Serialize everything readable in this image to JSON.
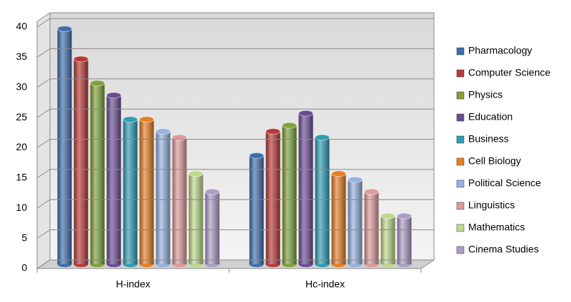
{
  "chart_data": {
    "type": "bar",
    "categories": [
      "H-index",
      "Hc-index"
    ],
    "series": [
      {
        "name": "Pharmacology",
        "color": "#3f6eaf",
        "values": [
          39,
          18
        ]
      },
      {
        "name": "Computer Science",
        "color": "#b83a37",
        "values": [
          34,
          22
        ]
      },
      {
        "name": "Physics",
        "color": "#7ea23a",
        "values": [
          30,
          23
        ]
      },
      {
        "name": "Education",
        "color": "#6b4c94",
        "values": [
          28,
          25
        ]
      },
      {
        "name": "Business",
        "color": "#2e9db5",
        "values": [
          24,
          21
        ]
      },
      {
        "name": "Cell Biology",
        "color": "#e87f24",
        "values": [
          24,
          15
        ]
      },
      {
        "name": "Political Science",
        "color": "#95b2e0",
        "values": [
          22,
          14
        ]
      },
      {
        "name": "Linguistics",
        "color": "#e09a9a",
        "values": [
          21,
          12
        ]
      },
      {
        "name": "Mathematics",
        "color": "#bcd98b",
        "values": [
          15,
          8
        ]
      },
      {
        "name": "Cinema Studies",
        "color": "#ad9dc7",
        "values": [
          12,
          8
        ]
      }
    ],
    "ylim": [
      0,
      40
    ],
    "yticks": [
      0,
      5,
      10,
      15,
      20,
      25,
      30,
      35,
      40
    ],
    "grid": true,
    "legend": "right"
  }
}
